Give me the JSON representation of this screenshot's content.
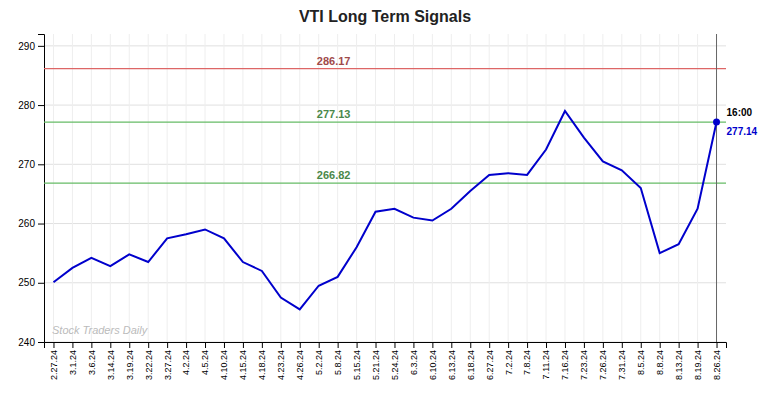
{
  "chart_data": {
    "type": "line",
    "title": "VTI Long Term Signals",
    "categories": [
      "2.27.24",
      "3.1.24",
      "3.6.24",
      "3.14.24",
      "3.19.24",
      "3.22.24",
      "3.27.24",
      "4.2.24",
      "4.5.24",
      "4.10.24",
      "4.15.24",
      "4.18.24",
      "4.23.24",
      "4.26.24",
      "5.2.24",
      "5.8.24",
      "5.15.24",
      "5.21.24",
      "5.24.24",
      "6.3.24",
      "6.10.24",
      "6.13.24",
      "6.18.24",
      "6.27.24",
      "7.2.24",
      "7.8.24",
      "7.11.24",
      "7.16.24",
      "7.23.24",
      "7.26.24",
      "7.31.24",
      "8.5.24",
      "8.8.24",
      "8.13.24",
      "8.19.24",
      "8.26.24"
    ],
    "values": [
      250.1,
      252.5,
      254.2,
      252.8,
      254.8,
      253.5,
      257.5,
      258.2,
      259.0,
      257.5,
      253.5,
      252.0,
      247.5,
      245.5,
      249.5,
      251.0,
      256.0,
      262.0,
      262.5,
      261.0,
      260.5,
      262.5,
      265.5,
      268.2,
      268.5,
      268.2,
      272.5,
      279.0,
      274.5,
      270.5,
      269.0,
      266.0,
      255.0,
      256.5,
      262.5,
      277.14
    ],
    "color": "#0000cc",
    "ylim": [
      240,
      292
    ],
    "yticks": [
      240,
      250,
      260,
      270,
      280,
      290
    ],
    "grid": true,
    "reference_lines": [
      {
        "value": 286.17,
        "color": "#dd6666"
      },
      {
        "value": 277.13,
        "color": "#66bb66"
      },
      {
        "value": 266.82,
        "color": "#66bb66"
      }
    ],
    "annotations": [
      "16:00"
    ],
    "watermark": "Stock Traders Daily"
  }
}
